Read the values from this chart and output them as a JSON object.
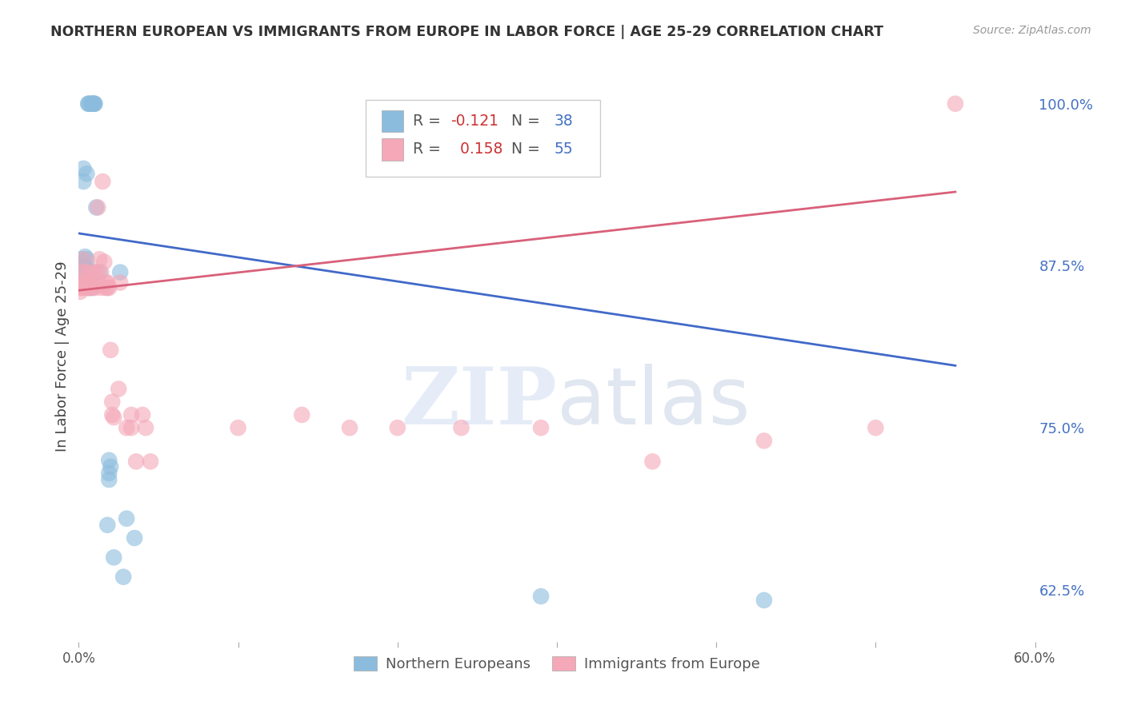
{
  "title": "NORTHERN EUROPEAN VS IMMIGRANTS FROM EUROPE IN LABOR FORCE | AGE 25-29 CORRELATION CHART",
  "source": "Source: ZipAtlas.com",
  "ylabel": "In Labor Force | Age 25-29",
  "xlim": [
    0.0,
    0.6
  ],
  "ylim": [
    0.585,
    1.025
  ],
  "xticks": [
    0.0,
    0.1,
    0.2,
    0.3,
    0.4,
    0.5,
    0.6
  ],
  "xticklabels": [
    "0.0%",
    "",
    "",
    "",
    "",
    "",
    "60.0%"
  ],
  "yticks": [
    0.625,
    0.75,
    0.875,
    1.0
  ],
  "yticklabels": [
    "62.5%",
    "75.0%",
    "87.5%",
    "100.0%"
  ],
  "blue_r": -0.121,
  "blue_n": 38,
  "pink_r": 0.158,
  "pink_n": 55,
  "blue_color": "#8BBCDD",
  "pink_color": "#F4A8B8",
  "blue_line_color": "#4169C8",
  "pink_line_color": "#D9607A",
  "blue_scatter": [
    [
      0.001,
      0.87
    ],
    [
      0.002,
      0.88
    ],
    [
      0.002,
      0.862
    ],
    [
      0.003,
      0.95
    ],
    [
      0.003,
      0.94
    ],
    [
      0.003,
      0.87
    ],
    [
      0.004,
      0.882
    ],
    [
      0.004,
      0.875
    ],
    [
      0.005,
      0.946
    ],
    [
      0.005,
      0.88
    ],
    [
      0.005,
      0.872
    ],
    [
      0.006,
      1.0
    ],
    [
      0.006,
      1.0
    ],
    [
      0.006,
      0.86
    ],
    [
      0.007,
      1.0
    ],
    [
      0.007,
      0.862
    ],
    [
      0.007,
      0.858
    ],
    [
      0.008,
      1.0
    ],
    [
      0.008,
      0.858
    ],
    [
      0.009,
      1.0
    ],
    [
      0.009,
      1.0
    ],
    [
      0.009,
      1.0
    ],
    [
      0.01,
      1.0
    ],
    [
      0.01,
      1.0
    ],
    [
      0.011,
      0.92
    ],
    [
      0.013,
      0.87
    ],
    [
      0.018,
      0.675
    ],
    [
      0.019,
      0.725
    ],
    [
      0.019,
      0.715
    ],
    [
      0.019,
      0.71
    ],
    [
      0.02,
      0.72
    ],
    [
      0.022,
      0.65
    ],
    [
      0.026,
      0.87
    ],
    [
      0.028,
      0.635
    ],
    [
      0.03,
      0.68
    ],
    [
      0.035,
      0.665
    ],
    [
      0.29,
      0.62
    ],
    [
      0.43,
      0.617
    ]
  ],
  "pink_scatter": [
    [
      0.001,
      0.858
    ],
    [
      0.001,
      0.855
    ],
    [
      0.002,
      0.87
    ],
    [
      0.002,
      0.862
    ],
    [
      0.002,
      0.858
    ],
    [
      0.003,
      0.88
    ],
    [
      0.003,
      0.862
    ],
    [
      0.003,
      0.858
    ],
    [
      0.004,
      0.87
    ],
    [
      0.004,
      0.862
    ],
    [
      0.005,
      0.862
    ],
    [
      0.005,
      0.858
    ],
    [
      0.006,
      0.862
    ],
    [
      0.006,
      0.858
    ],
    [
      0.007,
      0.87
    ],
    [
      0.007,
      0.858
    ],
    [
      0.008,
      0.862
    ],
    [
      0.009,
      0.858
    ],
    [
      0.01,
      0.87
    ],
    [
      0.01,
      0.858
    ],
    [
      0.011,
      0.87
    ],
    [
      0.012,
      0.92
    ],
    [
      0.013,
      0.88
    ],
    [
      0.014,
      0.87
    ],
    [
      0.014,
      0.858
    ],
    [
      0.015,
      0.94
    ],
    [
      0.016,
      0.878
    ],
    [
      0.017,
      0.862
    ],
    [
      0.017,
      0.858
    ],
    [
      0.018,
      0.862
    ],
    [
      0.018,
      0.858
    ],
    [
      0.019,
      0.858
    ],
    [
      0.02,
      0.81
    ],
    [
      0.021,
      0.77
    ],
    [
      0.021,
      0.76
    ],
    [
      0.022,
      0.758
    ],
    [
      0.025,
      0.78
    ],
    [
      0.026,
      0.862
    ],
    [
      0.03,
      0.75
    ],
    [
      0.033,
      0.76
    ],
    [
      0.033,
      0.75
    ],
    [
      0.036,
      0.724
    ],
    [
      0.04,
      0.76
    ],
    [
      0.042,
      0.75
    ],
    [
      0.045,
      0.724
    ],
    [
      0.1,
      0.75
    ],
    [
      0.14,
      0.76
    ],
    [
      0.17,
      0.75
    ],
    [
      0.2,
      0.75
    ],
    [
      0.24,
      0.75
    ],
    [
      0.29,
      0.75
    ],
    [
      0.36,
      0.724
    ],
    [
      0.43,
      0.74
    ],
    [
      0.5,
      0.75
    ],
    [
      0.55,
      1.0
    ]
  ],
  "blue_line": {
    "x0": 0.0,
    "x1": 0.55,
    "y0": 0.9,
    "y1": 0.798
  },
  "pink_line": {
    "x0": 0.0,
    "x1": 0.55,
    "y0": 0.856,
    "y1": 0.932
  },
  "watermark_zip": "ZIP",
  "watermark_atlas": "atlas",
  "legend_label_blue": "Northern Europeans",
  "legend_label_pink": "Immigrants from Europe",
  "background_color": "#ffffff",
  "grid_color": "#d8d8d8",
  "legend_r_color": "#cc3333",
  "legend_n_color": "#4472C4",
  "ytick_color": "#4472C4"
}
